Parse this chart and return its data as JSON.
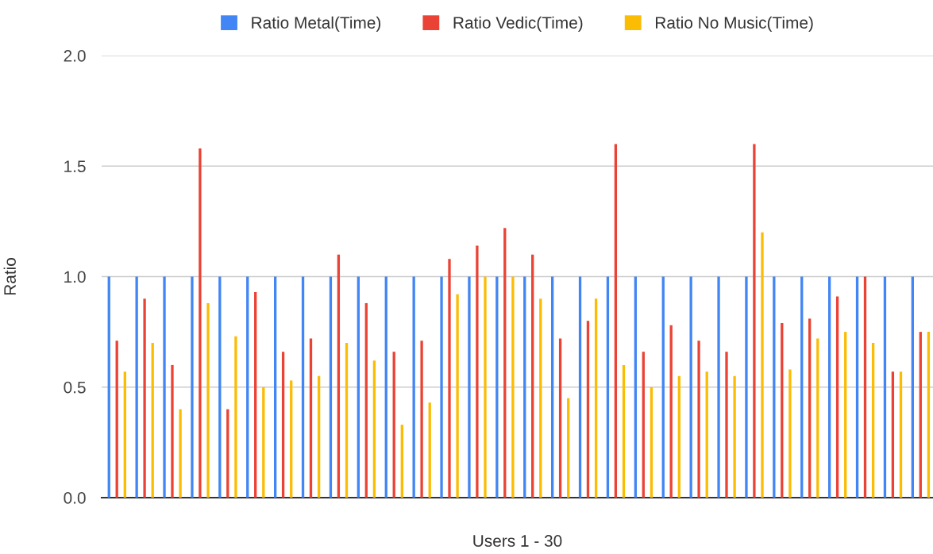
{
  "chart_data": {
    "type": "bar",
    "xlabel": "Users 1 - 30",
    "ylabel": "Ratio",
    "categories": [
      null,
      null,
      null,
      null,
      null,
      null,
      null,
      null,
      null,
      null,
      null,
      null,
      null,
      null,
      null,
      null,
      null,
      null,
      null,
      null,
      null,
      null,
      null,
      null,
      null,
      null,
      null,
      null,
      null,
      null
    ],
    "series": [
      {
        "name": "Ratio Metal(Time)",
        "color": "#4285f4",
        "values": [
          1,
          1,
          1,
          1,
          1,
          1,
          1,
          1,
          1,
          1,
          1,
          1,
          1,
          1,
          1,
          1,
          1,
          1,
          1,
          1,
          1,
          1,
          1,
          1,
          1,
          1,
          1,
          1,
          1,
          1
        ]
      },
      {
        "name": "Ratio Vedic(Time)",
        "color": "#ea4335",
        "values": [
          0.71,
          0.9,
          0.6,
          1.58,
          0.4,
          0.93,
          0.66,
          0.72,
          1.1,
          0.88,
          0.66,
          0.71,
          1.08,
          1.14,
          1.22,
          1.1,
          0.72,
          0.8,
          1.6,
          0.66,
          0.78,
          0.71,
          0.66,
          1.6,
          0.79,
          0.81,
          0.91,
          1.0,
          0.57,
          0.75
        ]
      },
      {
        "name": "Ratio No Music(Time)",
        "color": "#fbbc04",
        "values": [
          0.57,
          0.7,
          0.4,
          0.88,
          0.73,
          0.5,
          0.53,
          0.55,
          0.7,
          0.62,
          0.33,
          0.43,
          0.92,
          1.0,
          1.0,
          0.9,
          0.45,
          0.9,
          0.6,
          0.5,
          0.55,
          0.57,
          0.55,
          1.2,
          0.58,
          0.72,
          0.75,
          0.7,
          0.57,
          0.75
        ]
      }
    ],
    "ylim": [
      0,
      2.0
    ],
    "yticks": [
      {
        "value": 0,
        "label": "0.0"
      },
      {
        "value": 0.5,
        "label": "0.5"
      },
      {
        "value": 1.0,
        "label": "1.0"
      },
      {
        "value": 1.5,
        "label": "1.5"
      },
      {
        "value": 2.0,
        "label": "2.0"
      }
    ],
    "grid": "y",
    "legend": "top"
  }
}
